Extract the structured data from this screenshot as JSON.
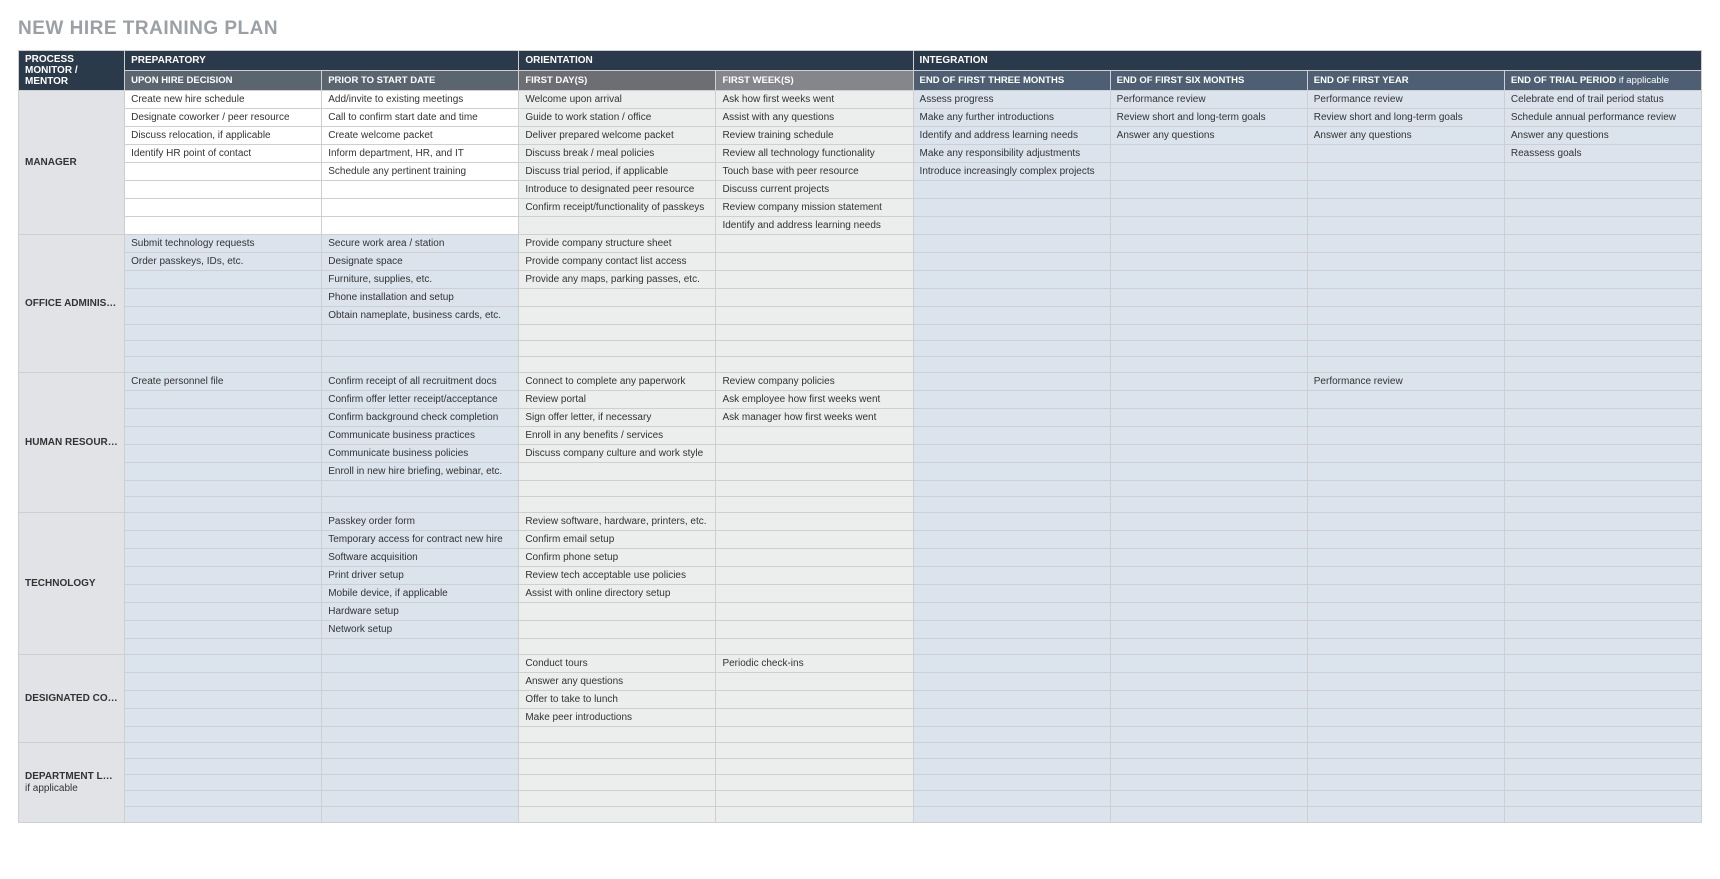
{
  "title": "NEW HIRE TRAINING PLAN",
  "corner": "PROCESS MONITOR / MENTOR",
  "phases": {
    "prep": "PREPARATORY",
    "orientation": "ORIENTATION",
    "integration": "INTEGRATION"
  },
  "subheaders": {
    "prep1": "UPON HIRE DECISION",
    "prep2": "PRIOR TO START DATE",
    "ori1": "FIRST DAY(S)",
    "ori2": "FIRST WEEK(S)",
    "int1": "END OF FIRST THREE MONTHS",
    "int2": "END OF FIRST SIX MONTHS",
    "int3": "END OF FIRST YEAR",
    "int4_main": "END OF TRIAL PERIOD",
    "int4_suffix": " if applicable"
  },
  "colors": {
    "phase_bg": "#2b3a4a",
    "sub_prep_bg": "#5b6570",
    "sub_ori1_bg": "#6d6d74",
    "sub_ori2_bg": "#85858c",
    "sub_int_bg": "#4f5f73",
    "integration_cell_bg": "#dbe3ec",
    "orientation_cell_bg": "#eceded",
    "rowlabel_bg": "#e2e3e6",
    "border": "#cfcfcf"
  },
  "sections": [
    {
      "id": "manager",
      "label": "MANAGER",
      "label_suffix": "",
      "tinted_prep": false,
      "rows": [
        [
          "Create new hire schedule",
          "Add/invite to existing meetings",
          "Welcome upon arrival",
          "Ask how first weeks went",
          "Assess progress",
          "Performance review",
          "Performance review",
          "Celebrate end of trail period status"
        ],
        [
          "Designate coworker / peer resource",
          "Call to confirm start date and time",
          "Guide to work station / office",
          "Assist with any questions",
          "Make any further introductions",
          "Review short and long-term goals",
          "Review short and long-term goals",
          "Schedule annual performance review"
        ],
        [
          "Discuss relocation, if applicable",
          "Create welcome packet",
          "Deliver prepared welcome packet",
          "Review training schedule",
          "Identify and address learning needs",
          "Answer any questions",
          "Answer any questions",
          "Answer any questions"
        ],
        [
          "Identify HR point of contact",
          "Inform department, HR, and IT",
          "Discuss break / meal policies",
          "Review all technology functionality",
          "Make any responsibility adjustments",
          "",
          "",
          "Reassess goals"
        ],
        [
          "",
          "Schedule any pertinent training",
          "Discuss trial period, if applicable",
          "Touch base with peer resource",
          "Introduce increasingly complex projects",
          "",
          "",
          ""
        ],
        [
          "",
          "",
          "Introduce to designated peer resource",
          "Discuss current projects",
          "",
          "",
          "",
          ""
        ],
        [
          "",
          "",
          "Confirm receipt/functionality of passkeys",
          "Review company mission statement",
          "",
          "",
          "",
          ""
        ],
        [
          "",
          "",
          "",
          "Identify and address learning needs",
          "",
          "",
          "",
          ""
        ]
      ]
    },
    {
      "id": "office-admin",
      "label": "OFFICE ADMINISTRATOR",
      "label_suffix": "",
      "tinted_prep": true,
      "rows": [
        [
          "Submit technology requests",
          "Secure work area / station",
          "Provide company structure sheet",
          "",
          "",
          "",
          "",
          ""
        ],
        [
          "Order passkeys, IDs, etc.",
          "Designate space",
          "Provide company contact list access",
          "",
          "",
          "",
          "",
          ""
        ],
        [
          "",
          "Furniture, supplies, etc.",
          "Provide any maps, parking passes, etc.",
          "",
          "",
          "",
          "",
          ""
        ],
        [
          "",
          "Phone installation and setup",
          "",
          "",
          "",
          "",
          "",
          ""
        ],
        [
          "",
          "Obtain nameplate, business cards, etc.",
          "",
          "",
          "",
          "",
          "",
          ""
        ],
        [
          "",
          "",
          "",
          "",
          "",
          "",
          "",
          ""
        ],
        [
          "",
          "",
          "",
          "",
          "",
          "",
          "",
          ""
        ],
        [
          "",
          "",
          "",
          "",
          "",
          "",
          "",
          ""
        ]
      ]
    },
    {
      "id": "hr",
      "label": "HUMAN RESOURCES",
      "label_suffix": "",
      "tinted_prep": true,
      "rows": [
        [
          "Create personnel file",
          "Confirm receipt of all recruitment docs",
          "Connect to complete any paperwork",
          "Review company policies",
          "",
          "",
          "Performance review",
          ""
        ],
        [
          "",
          "Confirm offer letter receipt/acceptance",
          "Review portal",
          "Ask employee how first weeks went",
          "",
          "",
          "",
          ""
        ],
        [
          "",
          "Confirm background check completion",
          "Sign offer letter, if necessary",
          "Ask manager how first weeks went",
          "",
          "",
          "",
          ""
        ],
        [
          "",
          "Communicate business practices",
          "Enroll in any benefits / services",
          "",
          "",
          "",
          "",
          ""
        ],
        [
          "",
          "Communicate business policies",
          "Discuss company culture and work style",
          "",
          "",
          "",
          "",
          ""
        ],
        [
          "",
          "Enroll in new hire briefing, webinar, etc.",
          "",
          "",
          "",
          "",
          "",
          ""
        ],
        [
          "",
          "",
          "",
          "",
          "",
          "",
          "",
          ""
        ],
        [
          "",
          "",
          "",
          "",
          "",
          "",
          "",
          ""
        ]
      ]
    },
    {
      "id": "technology",
      "label": "TECHNOLOGY",
      "label_suffix": "",
      "tinted_prep": true,
      "rows": [
        [
          "",
          "Passkey order form",
          "Review software, hardware, printers, etc.",
          "",
          "",
          "",
          "",
          ""
        ],
        [
          "",
          "Temporary access for contract new hire",
          "Confirm email setup",
          "",
          "",
          "",
          "",
          ""
        ],
        [
          "",
          "Software acquisition",
          "Confirm phone setup",
          "",
          "",
          "",
          "",
          ""
        ],
        [
          "",
          "Print driver setup",
          "Review tech acceptable use policies",
          "",
          "",
          "",
          "",
          ""
        ],
        [
          "",
          "Mobile device, if applicable",
          "Assist with online directory setup",
          "",
          "",
          "",
          "",
          ""
        ],
        [
          "",
          "Hardware setup",
          "",
          "",
          "",
          "",
          "",
          ""
        ],
        [
          "",
          "Network setup",
          "",
          "",
          "",
          "",
          "",
          ""
        ],
        [
          "",
          "",
          "",
          "",
          "",
          "",
          "",
          ""
        ]
      ]
    },
    {
      "id": "peer",
      "label": "DESIGNATED COWORKER / PEER RESOURCE",
      "label_suffix": "",
      "tinted_prep": true,
      "rows": [
        [
          "",
          "",
          "Conduct tours",
          "Periodic check-ins",
          "",
          "",
          "",
          ""
        ],
        [
          "",
          "",
          "Answer any questions",
          "",
          "",
          "",
          "",
          ""
        ],
        [
          "",
          "",
          "Offer to take to lunch",
          "",
          "",
          "",
          "",
          ""
        ],
        [
          "",
          "",
          "Make peer introductions",
          "",
          "",
          "",
          "",
          ""
        ],
        [
          "",
          "",
          "",
          "",
          "",
          "",
          "",
          ""
        ]
      ]
    },
    {
      "id": "dept-lead",
      "label": "DEPARTMENT LEAD",
      "label_suffix": "if applicable",
      "tinted_prep": true,
      "rows": [
        [
          "",
          "",
          "",
          "",
          "",
          "",
          "",
          ""
        ],
        [
          "",
          "",
          "",
          "",
          "",
          "",
          "",
          ""
        ],
        [
          "",
          "",
          "",
          "",
          "",
          "",
          "",
          ""
        ],
        [
          "",
          "",
          "",
          "",
          "",
          "",
          "",
          ""
        ],
        [
          "",
          "",
          "",
          "",
          "",
          "",
          "",
          ""
        ]
      ]
    }
  ]
}
